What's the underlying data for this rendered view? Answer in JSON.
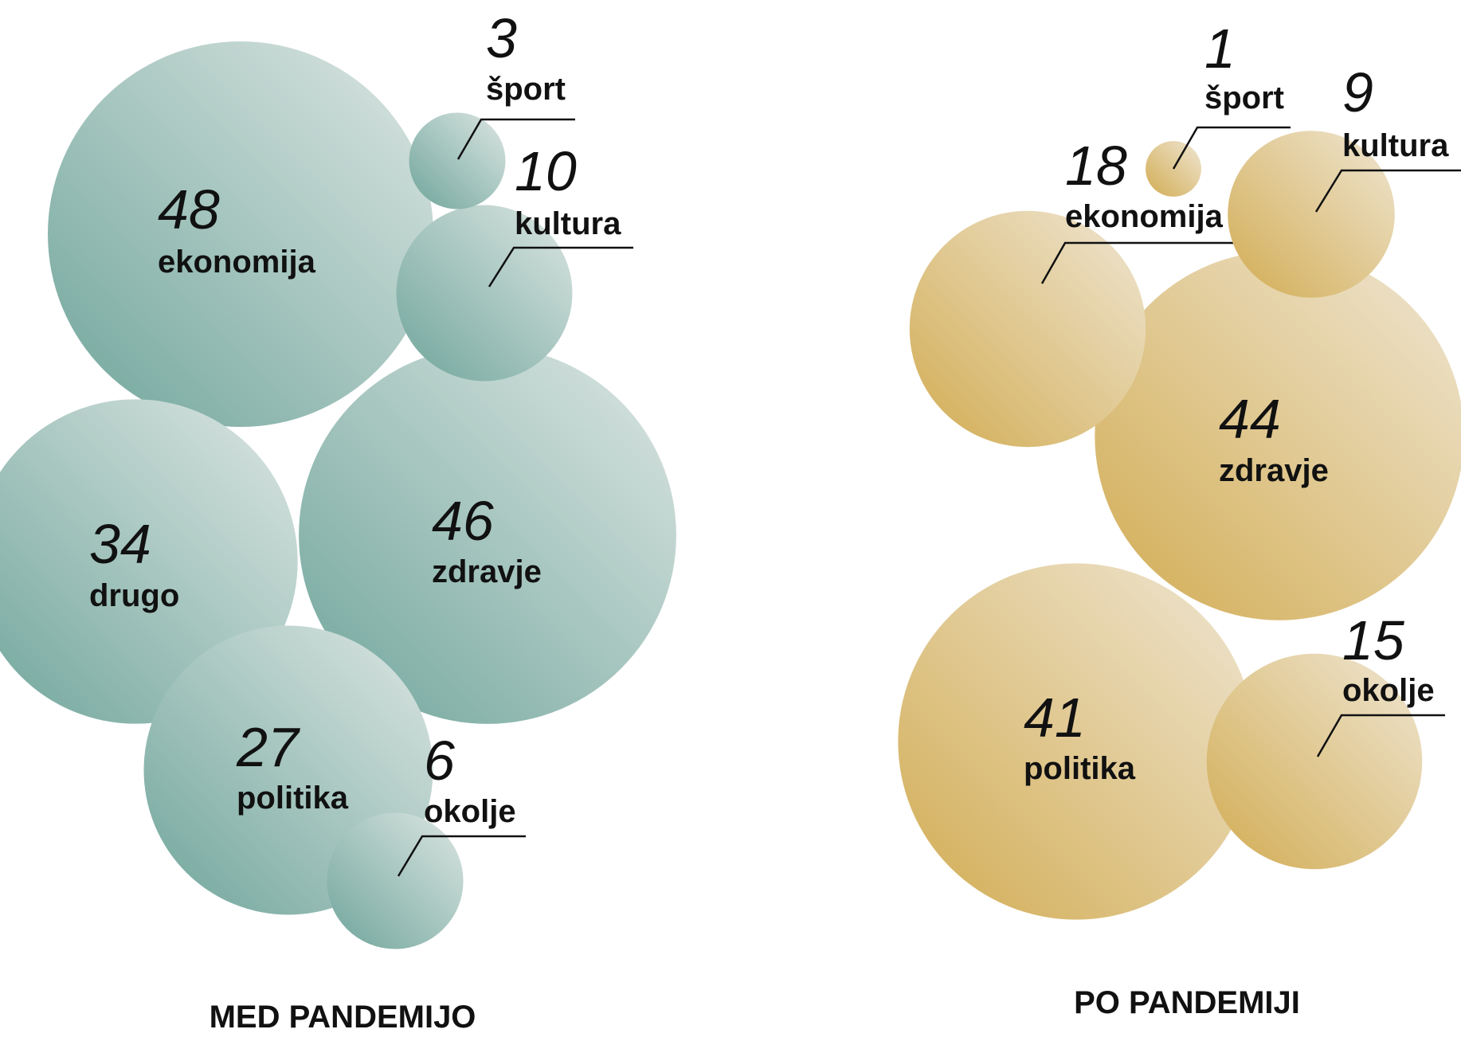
{
  "chart_data": [
    {
      "type": "bubble",
      "title": "MED PANDEMIJO",
      "color": "#6fa59b",
      "color_light": "#dde6e3",
      "items": [
        {
          "label": "ekonomija",
          "value": 48
        },
        {
          "label": "zdravje",
          "value": 46
        },
        {
          "label": "drugo",
          "value": 34
        },
        {
          "label": "politika",
          "value": 27
        },
        {
          "label": "kultura",
          "value": 10
        },
        {
          "label": "okolje",
          "value": 6
        },
        {
          "label": "šport",
          "value": 3
        }
      ]
    },
    {
      "type": "bubble",
      "title": "PO PANDEMIJI",
      "color": "#d2ac53",
      "color_light": "#efe6d3",
      "items": [
        {
          "label": "zdravje",
          "value": 44
        },
        {
          "label": "politika",
          "value": 41
        },
        {
          "label": "ekonomija",
          "value": 18
        },
        {
          "label": "okolje",
          "value": 15
        },
        {
          "label": "kultura",
          "value": 9
        },
        {
          "label": "šport",
          "value": 1
        }
      ]
    }
  ]
}
